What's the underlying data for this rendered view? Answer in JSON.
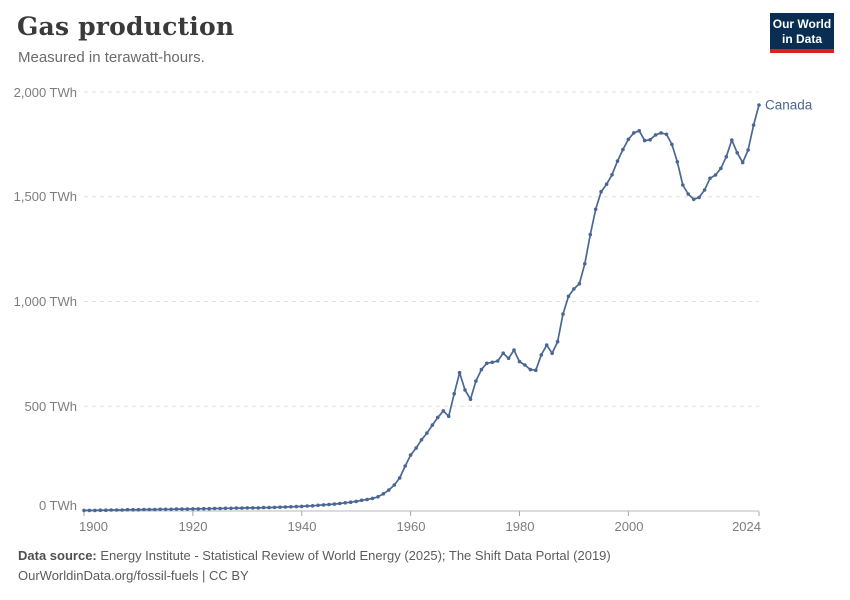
{
  "header": {
    "title": "Gas production",
    "subtitle": "Measured in terawatt-hours.",
    "logo": {
      "line1": "Our World",
      "line2": "in Data",
      "bg_color": "#0a2e52",
      "accent_color": "#d4261e"
    }
  },
  "footer": {
    "source_label": "Data source:",
    "source_text": "Energy Institute - Statistical Review of World Energy (2025); The Shift Data Portal (2019)",
    "url_text": "OurWorldinData.org/fossil-fuels",
    "separator": " | ",
    "license_text": "CC BY"
  },
  "chart_data": {
    "type": "line",
    "title": "Gas production",
    "subtitle": "Measured in terawatt-hours.",
    "unit": "TWh",
    "grid": "horizontal dashed",
    "legend_position": "end-of-line label",
    "line_color": "#4a6794",
    "axis_color": "#b9b9b9",
    "gridline_color": "#e0e0e0",
    "xlim": [
      1900,
      2024
    ],
    "ylim": [
      0,
      2000
    ],
    "yticks": [
      {
        "value": 0,
        "label": "0 TWh"
      },
      {
        "value": 500,
        "label": "500 TWh"
      },
      {
        "value": 1000,
        "label": "1,000 TWh"
      },
      {
        "value": 1500,
        "label": "1,500 TWh"
      },
      {
        "value": 2000,
        "label": "2,000 TWh"
      }
    ],
    "xticks": [
      {
        "value": 1900,
        "label": "1900"
      },
      {
        "value": 1920,
        "label": "1920"
      },
      {
        "value": 1940,
        "label": "1940"
      },
      {
        "value": 1960,
        "label": "1960"
      },
      {
        "value": 1980,
        "label": "1980"
      },
      {
        "value": 2000,
        "label": "2000"
      },
      {
        "value": 2024,
        "label": "2024"
      }
    ],
    "x": [
      1900,
      1901,
      1902,
      1903,
      1904,
      1905,
      1906,
      1907,
      1908,
      1909,
      1910,
      1911,
      1912,
      1913,
      1914,
      1915,
      1916,
      1917,
      1918,
      1919,
      1920,
      1921,
      1922,
      1923,
      1924,
      1925,
      1926,
      1927,
      1928,
      1929,
      1930,
      1931,
      1932,
      1933,
      1934,
      1935,
      1936,
      1937,
      1938,
      1939,
      1940,
      1941,
      1942,
      1943,
      1944,
      1945,
      1946,
      1947,
      1948,
      1949,
      1950,
      1951,
      1952,
      1953,
      1954,
      1955,
      1956,
      1957,
      1958,
      1959,
      1960,
      1961,
      1962,
      1963,
      1964,
      1965,
      1966,
      1967,
      1968,
      1969,
      1970,
      1971,
      1972,
      1973,
      1974,
      1975,
      1976,
      1977,
      1978,
      1979,
      1980,
      1981,
      1982,
      1983,
      1984,
      1985,
      1986,
      1987,
      1988,
      1989,
      1990,
      1991,
      1992,
      1993,
      1994,
      1995,
      1996,
      1997,
      1998,
      1999,
      2000,
      2001,
      2002,
      2003,
      2004,
      2005,
      2006,
      2007,
      2008,
      2009,
      2010,
      2011,
      2012,
      2013,
      2014,
      2015,
      2016,
      2017,
      2018,
      2019,
      2020,
      2021,
      2022,
      2023,
      2024
    ],
    "series": [
      {
        "name": "Canada",
        "color": "#4a6794",
        "values": [
          3,
          3,
          3,
          4,
          4,
          5,
          5,
          5,
          6,
          6,
          6,
          7,
          7,
          7,
          8,
          8,
          8,
          9,
          9,
          9,
          10,
          10,
          11,
          11,
          12,
          12,
          13,
          13,
          14,
          14,
          15,
          15,
          15,
          16,
          16,
          17,
          18,
          19,
          20,
          21,
          22,
          24,
          25,
          27,
          29,
          31,
          33,
          36,
          39,
          42,
          46,
          51,
          55,
          60,
          68,
          82,
          100,
          124,
          158,
          215,
          267,
          300,
          340,
          372,
          410,
          447,
          478,
          452,
          560,
          660,
          578,
          533,
          620,
          675,
          705,
          710,
          716,
          753,
          729,
          768,
          713,
          697,
          675,
          672,
          745,
          792,
          753,
          808,
          940,
          1025,
          1060,
          1085,
          1180,
          1320,
          1440,
          1524,
          1560,
          1605,
          1670,
          1725,
          1774,
          1805,
          1815,
          1768,
          1772,
          1795,
          1805,
          1798,
          1750,
          1667,
          1556,
          1513,
          1488,
          1497,
          1532,
          1588,
          1604,
          1636,
          1691,
          1771,
          1710,
          1663,
          1723,
          1842,
          1938
        ]
      }
    ]
  }
}
